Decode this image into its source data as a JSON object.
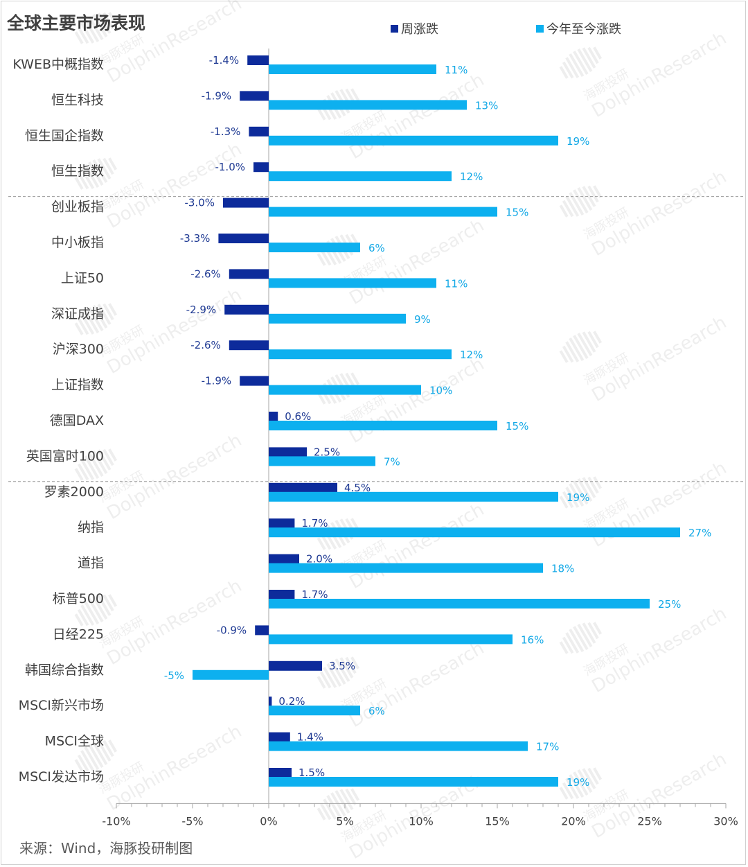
{
  "title": "全球主要市场表现",
  "source": "来源：Wind，海豚投研制图",
  "watermark": {
    "brand_cn": "海豚投研",
    "brand_en": "DolphinResearch"
  },
  "colors": {
    "weekly": "#0d2b9b",
    "ytd": "#0db0ef",
    "weekly_label": "#1f3a93",
    "ytd_label": "#12a8e6",
    "axis": "#a6a6a6",
    "text": "#404040",
    "separator": "#999999"
  },
  "legend": [
    {
      "name": "周涨跌",
      "color": "#0d2b9b"
    },
    {
      "name": "今年至今涨跌",
      "color": "#0db0ef"
    }
  ],
  "chart_data": {
    "type": "bar",
    "orientation": "horizontal",
    "categories": [
      "KWEB中概指数",
      "恒生科技",
      "恒生国企指数",
      "恒生指数",
      "创业板指",
      "中小板指",
      "上证50",
      "深证成指",
      "沪深300",
      "上证指数",
      "德国DAX",
      "英国富时100",
      "罗素2000",
      "纳指",
      "道指",
      "标普500",
      "日经225",
      "韩国综合指数",
      "MSCI新兴市场",
      "MSCI全球",
      "MSCI发达市场"
    ],
    "series": [
      {
        "name": "周涨跌",
        "values": [
          -1.4,
          -1.9,
          -1.3,
          -1.0,
          -3.0,
          -3.3,
          -2.6,
          -2.9,
          -2.6,
          -1.9,
          0.6,
          2.5,
          4.5,
          1.7,
          2.0,
          1.7,
          -0.9,
          3.5,
          0.2,
          1.4,
          1.5
        ],
        "labels": [
          "-1.4%",
          "-1.9%",
          "-1.3%",
          "-1.0%",
          "-3.0%",
          "-3.3%",
          "-2.6%",
          "-2.9%",
          "-2.6%",
          "-1.9%",
          "0.6%",
          "2.5%",
          "4.5%",
          "1.7%",
          "2.0%",
          "1.7%",
          "-0.9%",
          "3.5%",
          "0.2%",
          "1.4%",
          "1.5%"
        ]
      },
      {
        "name": "今年至今涨跌",
        "values": [
          11,
          13,
          19,
          12,
          15,
          6,
          11,
          9,
          12,
          10,
          15,
          7,
          19,
          27,
          18,
          25,
          16,
          -5,
          6,
          17,
          19
        ],
        "labels": [
          "11%",
          "13%",
          "19%",
          "12%",
          "15%",
          "6%",
          "11%",
          "9%",
          "12%",
          "10%",
          "15%",
          "7%",
          "19%",
          "27%",
          "18%",
          "25%",
          "16%",
          "-5%",
          "6%",
          "17%",
          "19%"
        ]
      }
    ],
    "x_ticks": [
      "-10%",
      "-5%",
      "0%",
      "5%",
      "10%",
      "15%",
      "20%",
      "25%",
      "30%"
    ],
    "xlim": [
      -10,
      30
    ],
    "group_separators_after": [
      "恒生指数",
      "英国富时100"
    ],
    "legend_position": "top",
    "grid": false
  }
}
